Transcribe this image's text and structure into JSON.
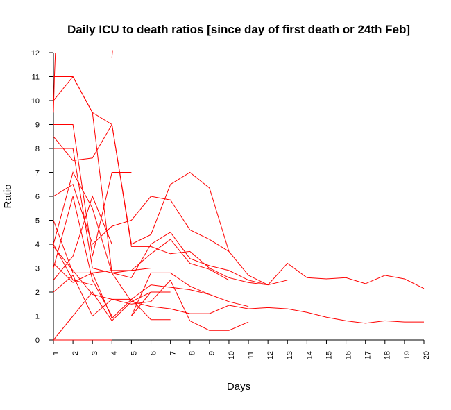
{
  "chart_data": {
    "type": "line",
    "title": "Daily ICU to death ratios [since day of first death or 24th Feb]",
    "xlabel": "Days",
    "ylabel": "Ratio",
    "x_ticks": [
      1,
      2,
      3,
      4,
      5,
      6,
      7,
      8,
      9,
      10,
      11,
      12,
      13,
      14,
      15,
      16,
      17,
      18,
      19,
      20
    ],
    "y_ticks": [
      0,
      1,
      2,
      3,
      4,
      5,
      6,
      7,
      8,
      9,
      10,
      11,
      12
    ],
    "xlim": [
      1,
      20
    ],
    "ylim": [
      0,
      12
    ],
    "grid": false,
    "legend": "none",
    "line_color": "#ff0000",
    "series": [
      {
        "x": [
          1,
          1.05,
          1.1
        ],
        "y": [
          9.5,
          11,
          12
        ]
      },
      {
        "x": [
          4,
          4.03
        ],
        "y": [
          11.8,
          12.1
        ]
      },
      {
        "x": [
          1,
          2,
          3,
          4,
          5,
          6,
          7,
          8,
          9,
          10,
          11,
          12,
          13,
          14,
          15,
          16,
          17,
          18,
          19,
          20
        ],
        "y": [
          11,
          11,
          9.5,
          2.8,
          1.6,
          1.4,
          1.3,
          1.1,
          1.1,
          1.45,
          1.3,
          1.35,
          1.3,
          1.15,
          0.95,
          0.8,
          0.7,
          0.8,
          0.75,
          0.75
        ]
      },
      {
        "x": [
          1,
          2,
          3,
          4,
          5,
          6,
          7,
          8,
          9,
          10,
          11,
          12,
          13,
          14,
          15,
          16,
          17,
          18,
          19,
          20
        ],
        "y": [
          10,
          11,
          9.5,
          9,
          3.9,
          3.9,
          3.6,
          3.7,
          3,
          2.6,
          2.4,
          2.3,
          3.2,
          2.6,
          2.55,
          2.6,
          2.35,
          2.7,
          2.55,
          2.15
        ]
      },
      {
        "x": [
          1,
          2,
          3,
          4,
          5
        ],
        "y": [
          9,
          9,
          3.5,
          7,
          7
        ]
      },
      {
        "x": [
          1,
          2,
          3,
          4,
          5,
          6,
          7,
          8,
          9,
          10,
          11,
          12
        ],
        "y": [
          8,
          8,
          3,
          2.8,
          2.6,
          4,
          4.5,
          3.4,
          3.1,
          2.9,
          2.5,
          2.3
        ]
      },
      {
        "x": [
          1,
          2,
          3,
          4,
          5,
          6,
          7,
          8,
          9,
          10,
          11,
          12,
          13
        ],
        "y": [
          8.5,
          7.5,
          7.6,
          9,
          4,
          4.4,
          6.5,
          7,
          6.35,
          3.7,
          2.7,
          2.3,
          2.5
        ]
      },
      {
        "x": [
          1,
          2,
          3,
          4,
          5,
          6,
          7,
          8,
          9,
          10
        ],
        "y": [
          6,
          6.5,
          4,
          4.75,
          5,
          6,
          5.85,
          4.6,
          4.2,
          3.7
        ]
      },
      {
        "x": [
          1,
          2,
          3,
          4,
          5,
          6,
          7,
          8,
          9,
          10
        ],
        "y": [
          4,
          7,
          5.5,
          2.8,
          2.9,
          3.6,
          4.2,
          3.2,
          2.95,
          2.5
        ]
      },
      {
        "x": [
          1,
          2,
          3,
          4
        ],
        "y": [
          2.5,
          3.5,
          6,
          4
        ]
      },
      {
        "x": [
          1,
          2,
          3,
          4,
          5,
          6,
          7,
          8,
          9,
          10,
          11
        ],
        "y": [
          3,
          6,
          2.5,
          1,
          1,
          2.8,
          2.8,
          2.25,
          1.9,
          1.6,
          1.4
        ]
      },
      {
        "x": [
          1,
          2,
          3,
          4,
          5,
          6,
          7
        ],
        "y": [
          5,
          2.8,
          2.8,
          2.9,
          2.9,
          3,
          3
        ]
      },
      {
        "x": [
          1,
          2,
          3,
          4,
          5,
          6,
          7,
          8,
          9
        ],
        "y": [
          3.2,
          2.4,
          2.8,
          0.9,
          1.7,
          2.3,
          2.2,
          2.1,
          1.9
        ]
      },
      {
        "x": [
          1,
          2,
          3
        ],
        "y": [
          4,
          2.5,
          2.3
        ]
      },
      {
        "x": [
          1,
          2,
          3,
          4,
          5,
          6,
          7,
          8,
          9,
          10,
          11
        ],
        "y": [
          2,
          2.7,
          1,
          1.7,
          1.5,
          1.6,
          2.5,
          0.8,
          0.4,
          0.4,
          0.75
        ]
      },
      {
        "x": [
          1,
          2,
          3,
          4,
          5,
          6,
          7
        ],
        "y": [
          3.9,
          2.9,
          1.9,
          1.7,
          1.7,
          0.85,
          0.85
        ]
      },
      {
        "x": [
          1,
          2,
          3,
          4,
          5,
          6
        ],
        "y": [
          1,
          1,
          1,
          1,
          1,
          2
        ]
      },
      {
        "x": [
          1,
          2,
          3,
          4
        ],
        "y": [
          0,
          0,
          0,
          0
        ]
      },
      {
        "x": [
          1,
          2,
          3,
          4,
          5,
          6,
          7
        ],
        "y": [
          0,
          1,
          2,
          0.8,
          1.6,
          2,
          2
        ]
      }
    ]
  }
}
